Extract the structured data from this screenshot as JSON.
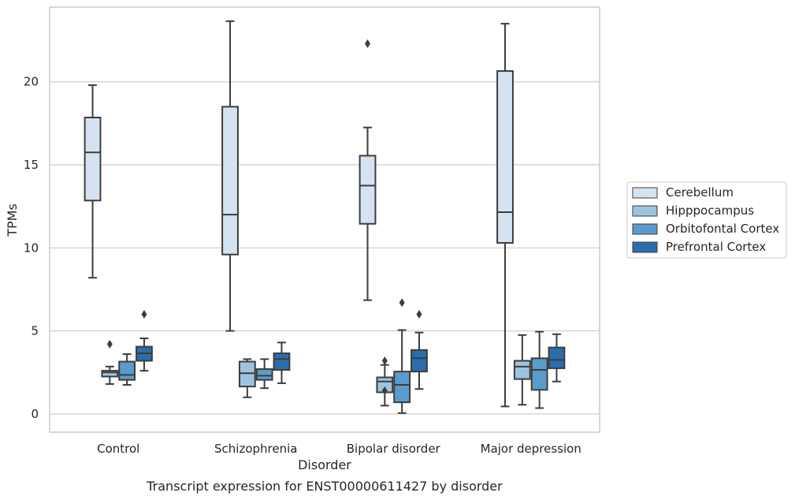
{
  "chart_data": {
    "type": "box",
    "title": "",
    "caption": "Transcript expression for ENST00000611427 by disorder",
    "xlabel": "Disorder",
    "ylabel": "TPMs",
    "ylim": [
      -1.1,
      24.5
    ],
    "yticks": [
      0,
      5,
      10,
      15,
      20
    ],
    "grid": "horizontal",
    "legend_position": "right",
    "categories": [
      "Control",
      "Schizophrenia",
      "Bipolar disorder",
      "Major depression"
    ],
    "series": [
      {
        "name": "Cerebellum",
        "color": "#d5e3f1",
        "boxes": [
          {
            "whislo": 8.2,
            "q1": 12.85,
            "med": 15.75,
            "q3": 17.85,
            "whishi": 19.8,
            "fliers": []
          },
          {
            "whislo": 5.0,
            "q1": 9.6,
            "med": 12.0,
            "q3": 18.5,
            "whishi": 23.65,
            "fliers": []
          },
          {
            "whislo": 6.85,
            "q1": 11.45,
            "med": 13.75,
            "q3": 15.55,
            "whishi": 17.25,
            "fliers": [
              22.3
            ]
          },
          {
            "whislo": 0.45,
            "q1": 10.3,
            "med": 12.15,
            "q3": 20.65,
            "whishi": 23.5,
            "fliers": []
          }
        ]
      },
      {
        "name": "Hipppocampus",
        "color": "#9ec3de",
        "boxes": [
          {
            "whislo": 1.8,
            "q1": 2.25,
            "med": 2.5,
            "q3": 2.6,
            "whishi": 2.85,
            "fliers": [
              4.2
            ]
          },
          {
            "whislo": 1.0,
            "q1": 1.65,
            "med": 2.45,
            "q3": 3.15,
            "whishi": 3.3,
            "fliers": []
          },
          {
            "whislo": 0.5,
            "q1": 1.3,
            "med": 1.95,
            "q3": 2.2,
            "whishi": 2.95,
            "fliers": [
              3.2,
              1.4
            ]
          },
          {
            "whislo": 0.55,
            "q1": 2.1,
            "med": 2.85,
            "q3": 3.2,
            "whishi": 4.75,
            "fliers": []
          }
        ]
      },
      {
        "name": "Orbitofontal Cortex",
        "color": "#5c9bc9",
        "boxes": [
          {
            "whislo": 1.75,
            "q1": 2.05,
            "med": 2.35,
            "q3": 3.15,
            "whishi": 3.6,
            "fliers": []
          },
          {
            "whislo": 1.55,
            "q1": 2.05,
            "med": 2.3,
            "q3": 2.7,
            "whishi": 3.3,
            "fliers": []
          },
          {
            "whislo": 0.05,
            "q1": 0.7,
            "med": 1.75,
            "q3": 2.55,
            "whishi": 5.05,
            "fliers": [
              6.7
            ]
          },
          {
            "whislo": 0.35,
            "q1": 1.45,
            "med": 2.65,
            "q3": 3.35,
            "whishi": 4.95,
            "fliers": []
          }
        ]
      },
      {
        "name": "Prefrontal Cortex",
        "color": "#2b6dab",
        "boxes": [
          {
            "whislo": 2.6,
            "q1": 3.2,
            "med": 3.65,
            "q3": 4.05,
            "whishi": 4.55,
            "fliers": [
              6.0
            ]
          },
          {
            "whislo": 1.85,
            "q1": 2.65,
            "med": 3.3,
            "q3": 3.65,
            "whishi": 4.3,
            "fliers": []
          },
          {
            "whislo": 1.5,
            "q1": 2.55,
            "med": 3.35,
            "q3": 3.85,
            "whishi": 4.9,
            "fliers": [
              6.0
            ]
          },
          {
            "whislo": 1.95,
            "q1": 2.75,
            "med": 3.25,
            "q3": 4.0,
            "whishi": 4.8,
            "fliers": []
          }
        ]
      }
    ]
  }
}
